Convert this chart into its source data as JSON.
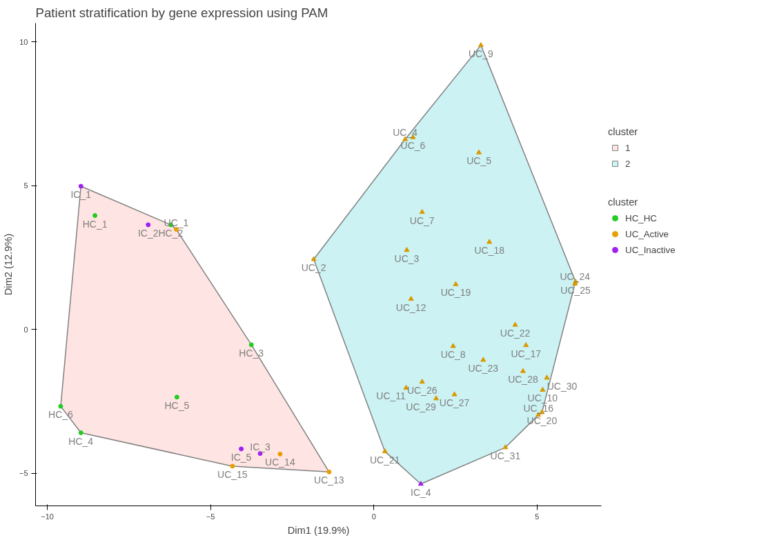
{
  "chart_data": {
    "type": "scatter",
    "title": "Patient stratification by gene expression using PAM",
    "xlabel": "Dim1 (19.9%)",
    "ylabel": "Dim2 (12.9%)",
    "legend_title": "cluster",
    "legend": "right",
    "grid": false,
    "xlim": [
      -10.36,
      6.97
    ],
    "ylim": [
      -6.13,
      10.65
    ],
    "xticks": [
      -10,
      -5,
      0,
      5
    ],
    "yticks": [
      -5,
      0,
      5,
      10
    ],
    "series": [
      {
        "type": "area",
        "name": "1",
        "color": "#f8766d",
        "x": [
          -8.97,
          -6.22,
          -6.05,
          -3.75,
          -1.37,
          -4.33,
          -8.97,
          -9.59
        ],
        "values": [
          4.98,
          3.64,
          3.48,
          -0.53,
          -4.95,
          -4.75,
          -3.59,
          -2.67
        ]
      },
      {
        "type": "area",
        "name": "2",
        "color": "#00bfc4",
        "x": [
          3.28,
          6.18,
          6.16,
          5.15,
          5.04,
          4.03,
          1.44,
          0.34,
          -1.84,
          0.96
        ],
        "values": [
          9.88,
          1.66,
          1.59,
          -2.88,
          -2.97,
          -4.1,
          -5.37,
          -4.24,
          2.44,
          6.61
        ]
      },
      {
        "name": "HC_HC",
        "color": "#22cc22",
        "marker": "circle",
        "x": [
          -8.54,
          -6.22,
          -3.75,
          -6.03,
          -9.59,
          -8.97
        ],
        "values": [
          3.96,
          3.64,
          -0.53,
          -2.35,
          -2.67,
          -3.59
        ]
      },
      {
        "name": "UC_Active",
        "color": "#e69f00",
        "marker": "circle",
        "x": [
          -6.05,
          -2.87,
          -4.33,
          -1.37
        ],
        "values": [
          3.48,
          -4.33,
          -4.75,
          -4.95
        ]
      },
      {
        "name": "UC_Inactive",
        "color": "#a020f0",
        "marker": "circle",
        "x": [
          -8.97,
          -6.91,
          -4.06,
          -3.48
        ],
        "values": [
          4.98,
          3.64,
          -4.15,
          -4.31
        ]
      },
      {
        "color": "#d99a00",
        "marker": "triangle",
        "x": [
          3.28,
          1.2,
          0.96,
          3.22,
          1.48,
          3.54,
          1.01,
          -1.84,
          6.18,
          6.16,
          2.51,
          1.14,
          4.33,
          2.43,
          4.66,
          3.35,
          4.57,
          5.3,
          1.48,
          5.17,
          0.99,
          2.47,
          1.91,
          5.15,
          5.04,
          4.03,
          0.34
        ],
        "values": [
          9.88,
          6.68,
          6.61,
          6.15,
          4.08,
          3.04,
          2.76,
          2.44,
          1.66,
          1.59,
          1.57,
          1.06,
          0.16,
          -0.58,
          -0.55,
          -1.06,
          -1.45,
          -1.68,
          -1.82,
          -2.1,
          -2.03,
          -2.26,
          -2.4,
          -2.88,
          -2.97,
          -4.1,
          -4.24
        ]
      },
      {
        "color": "#a020f0",
        "marker": "triangle",
        "x": [
          1.44
        ],
        "values": [
          -5.37
        ]
      }
    ],
    "annotations": [
      {
        "text": "HC_1",
        "x": -8.54,
        "y": 3.96
      },
      {
        "text": "HC_2",
        "x": -6.22,
        "y": 3.64
      },
      {
        "text": "HC_3",
        "x": -3.75,
        "y": -0.53
      },
      {
        "text": "HC_5",
        "x": -6.03,
        "y": -2.35
      },
      {
        "text": "HC_6",
        "x": -9.59,
        "y": -2.67
      },
      {
        "text": "HC_4",
        "x": -8.97,
        "y": -3.59
      },
      {
        "text": "UC_1",
        "x": -6.05,
        "y": 3.48
      },
      {
        "text": "UC_14",
        "x": -2.87,
        "y": -4.33
      },
      {
        "text": "UC_15",
        "x": -4.33,
        "y": -4.75
      },
      {
        "text": "UC_13",
        "x": -1.37,
        "y": -4.95
      },
      {
        "text": "IC_1",
        "x": -8.97,
        "y": 4.98
      },
      {
        "text": "IC_2",
        "x": -6.91,
        "y": 3.64
      },
      {
        "text": "IC_5",
        "x": -4.06,
        "y": -4.15
      },
      {
        "text": "IC_3",
        "x": -3.48,
        "y": -4.31
      },
      {
        "text": "UC_9",
        "x": 3.28,
        "y": 9.88
      },
      {
        "text": "UC_6",
        "x": 1.2,
        "y": 6.68
      },
      {
        "text": "UC_4",
        "x": 0.96,
        "y": 6.61
      },
      {
        "text": "UC_5",
        "x": 3.22,
        "y": 6.15
      },
      {
        "text": "UC_7",
        "x": 1.48,
        "y": 4.08
      },
      {
        "text": "UC_18",
        "x": 3.54,
        "y": 3.04
      },
      {
        "text": "UC_3",
        "x": 1.01,
        "y": 2.76
      },
      {
        "text": "UC_2",
        "x": -1.84,
        "y": 2.44
      },
      {
        "text": "UC_25",
        "x": 6.18,
        "y": 1.66
      },
      {
        "text": "UC_24",
        "x": 6.16,
        "y": 1.59
      },
      {
        "text": "UC_19",
        "x": 2.51,
        "y": 1.57
      },
      {
        "text": "UC_12",
        "x": 1.14,
        "y": 1.06
      },
      {
        "text": "UC_22",
        "x": 4.33,
        "y": 0.16
      },
      {
        "text": "UC_8",
        "x": 2.43,
        "y": -0.58
      },
      {
        "text": "UC_17",
        "x": 4.66,
        "y": -0.55
      },
      {
        "text": "UC_23",
        "x": 3.35,
        "y": -1.06
      },
      {
        "text": "UC_28",
        "x": 4.57,
        "y": -1.45
      },
      {
        "text": "UC_30",
        "x": 5.3,
        "y": -1.68
      },
      {
        "text": "UC_26",
        "x": 1.48,
        "y": -1.82
      },
      {
        "text": "UC_10",
        "x": 5.17,
        "y": -2.1
      },
      {
        "text": "UC_11",
        "x": 0.99,
        "y": -2.03
      },
      {
        "text": "UC_27",
        "x": 2.47,
        "y": -2.26
      },
      {
        "text": "UC_29",
        "x": 1.91,
        "y": -2.4
      },
      {
        "text": "UC_20",
        "x": 5.15,
        "y": -2.88
      },
      {
        "text": "UC_16",
        "x": 5.04,
        "y": -2.97
      },
      {
        "text": "UC_31",
        "x": 4.03,
        "y": -4.1
      },
      {
        "text": "UC_21",
        "x": 0.34,
        "y": -4.24
      },
      {
        "text": "IC_4",
        "x": 1.44,
        "y": -5.37
      }
    ]
  }
}
